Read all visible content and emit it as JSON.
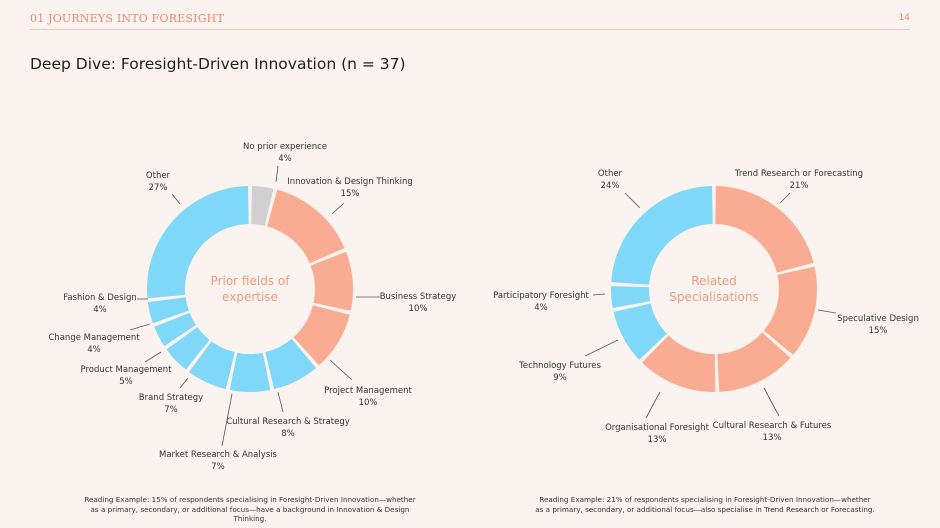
{
  "header": {
    "section_label": "01 JOURNEYS INTO FORESIGHT",
    "page_number": "14"
  },
  "page_title": "Deep Dive: Foresight-Driven Innovation (n = 37)",
  "colors": {
    "blue": "#80d8f8",
    "salmon": "#f9ac92",
    "grey": "#d0d0d0",
    "accent": "#ee9a7e"
  },
  "chart_data": [
    {
      "type": "pie",
      "donut": true,
      "center_label": [
        "Prior fields of",
        "expertise"
      ],
      "slices": [
        {
          "name": "No prior experience",
          "value": 4,
          "pct_label": "4%",
          "color": "grey"
        },
        {
          "name": "Innovation & Design Thinking",
          "value": 15,
          "pct_label": "15%",
          "color": "salmon"
        },
        {
          "name": "Business Strategy",
          "value": 10,
          "pct_label": "10%",
          "color": "salmon"
        },
        {
          "name": "Project Management",
          "value": 10,
          "pct_label": "10%",
          "color": "salmon"
        },
        {
          "name": "Cultural Research & Strategy",
          "value": 8,
          "pct_label": "8%",
          "color": "blue"
        },
        {
          "name": "Market Research & Analysis",
          "value": 7,
          "pct_label": "7%",
          "color": "blue"
        },
        {
          "name": "Brand Strategy",
          "value": 7,
          "pct_label": "7%",
          "color": "blue"
        },
        {
          "name": "Product Management",
          "value": 5,
          "pct_label": "5%",
          "color": "blue"
        },
        {
          "name": "Change Management",
          "value": 4,
          "pct_label": "4%",
          "color": "blue"
        },
        {
          "name": "Fashion & Design",
          "value": 4,
          "pct_label": "4%",
          "color": "blue"
        },
        {
          "name": "Other",
          "value": 27,
          "pct_label": "27%",
          "color": "blue"
        }
      ]
    },
    {
      "type": "pie",
      "donut": true,
      "center_label": [
        "Related",
        "Specialisations"
      ],
      "slices": [
        {
          "name": "Trend Research or Forecasting",
          "value": 21,
          "pct_label": "21%",
          "color": "salmon"
        },
        {
          "name": "Speculative Design",
          "value": 15,
          "pct_label": "15%",
          "color": "salmon"
        },
        {
          "name": "Cultural Research & Futures",
          "value": 13,
          "pct_label": "13%",
          "color": "salmon"
        },
        {
          "name": "Organisational Foresight",
          "value": 13,
          "pct_label": "13%",
          "color": "salmon"
        },
        {
          "name": "Technology Futures",
          "value": 9,
          "pct_label": "9%",
          "color": "blue"
        },
        {
          "name": "Participatory Foresight",
          "value": 4,
          "pct_label": "4%",
          "color": "blue"
        },
        {
          "name": "Other",
          "value": 24,
          "pct_label": "24%",
          "color": "blue"
        }
      ]
    }
  ],
  "notes": [
    "Reading Example: 15% of respondents specialising in Foresight-Driven Innovation—whether as a primary, secondary, or additional focus—have a background in Innovation & Design Thinking.",
    "Reading Example: 21% of respondents specialising in Foresight-Driven Innovation—whether as a primary, secondary, or additional focus—also specialise in Trend Research or Forecasting."
  ]
}
